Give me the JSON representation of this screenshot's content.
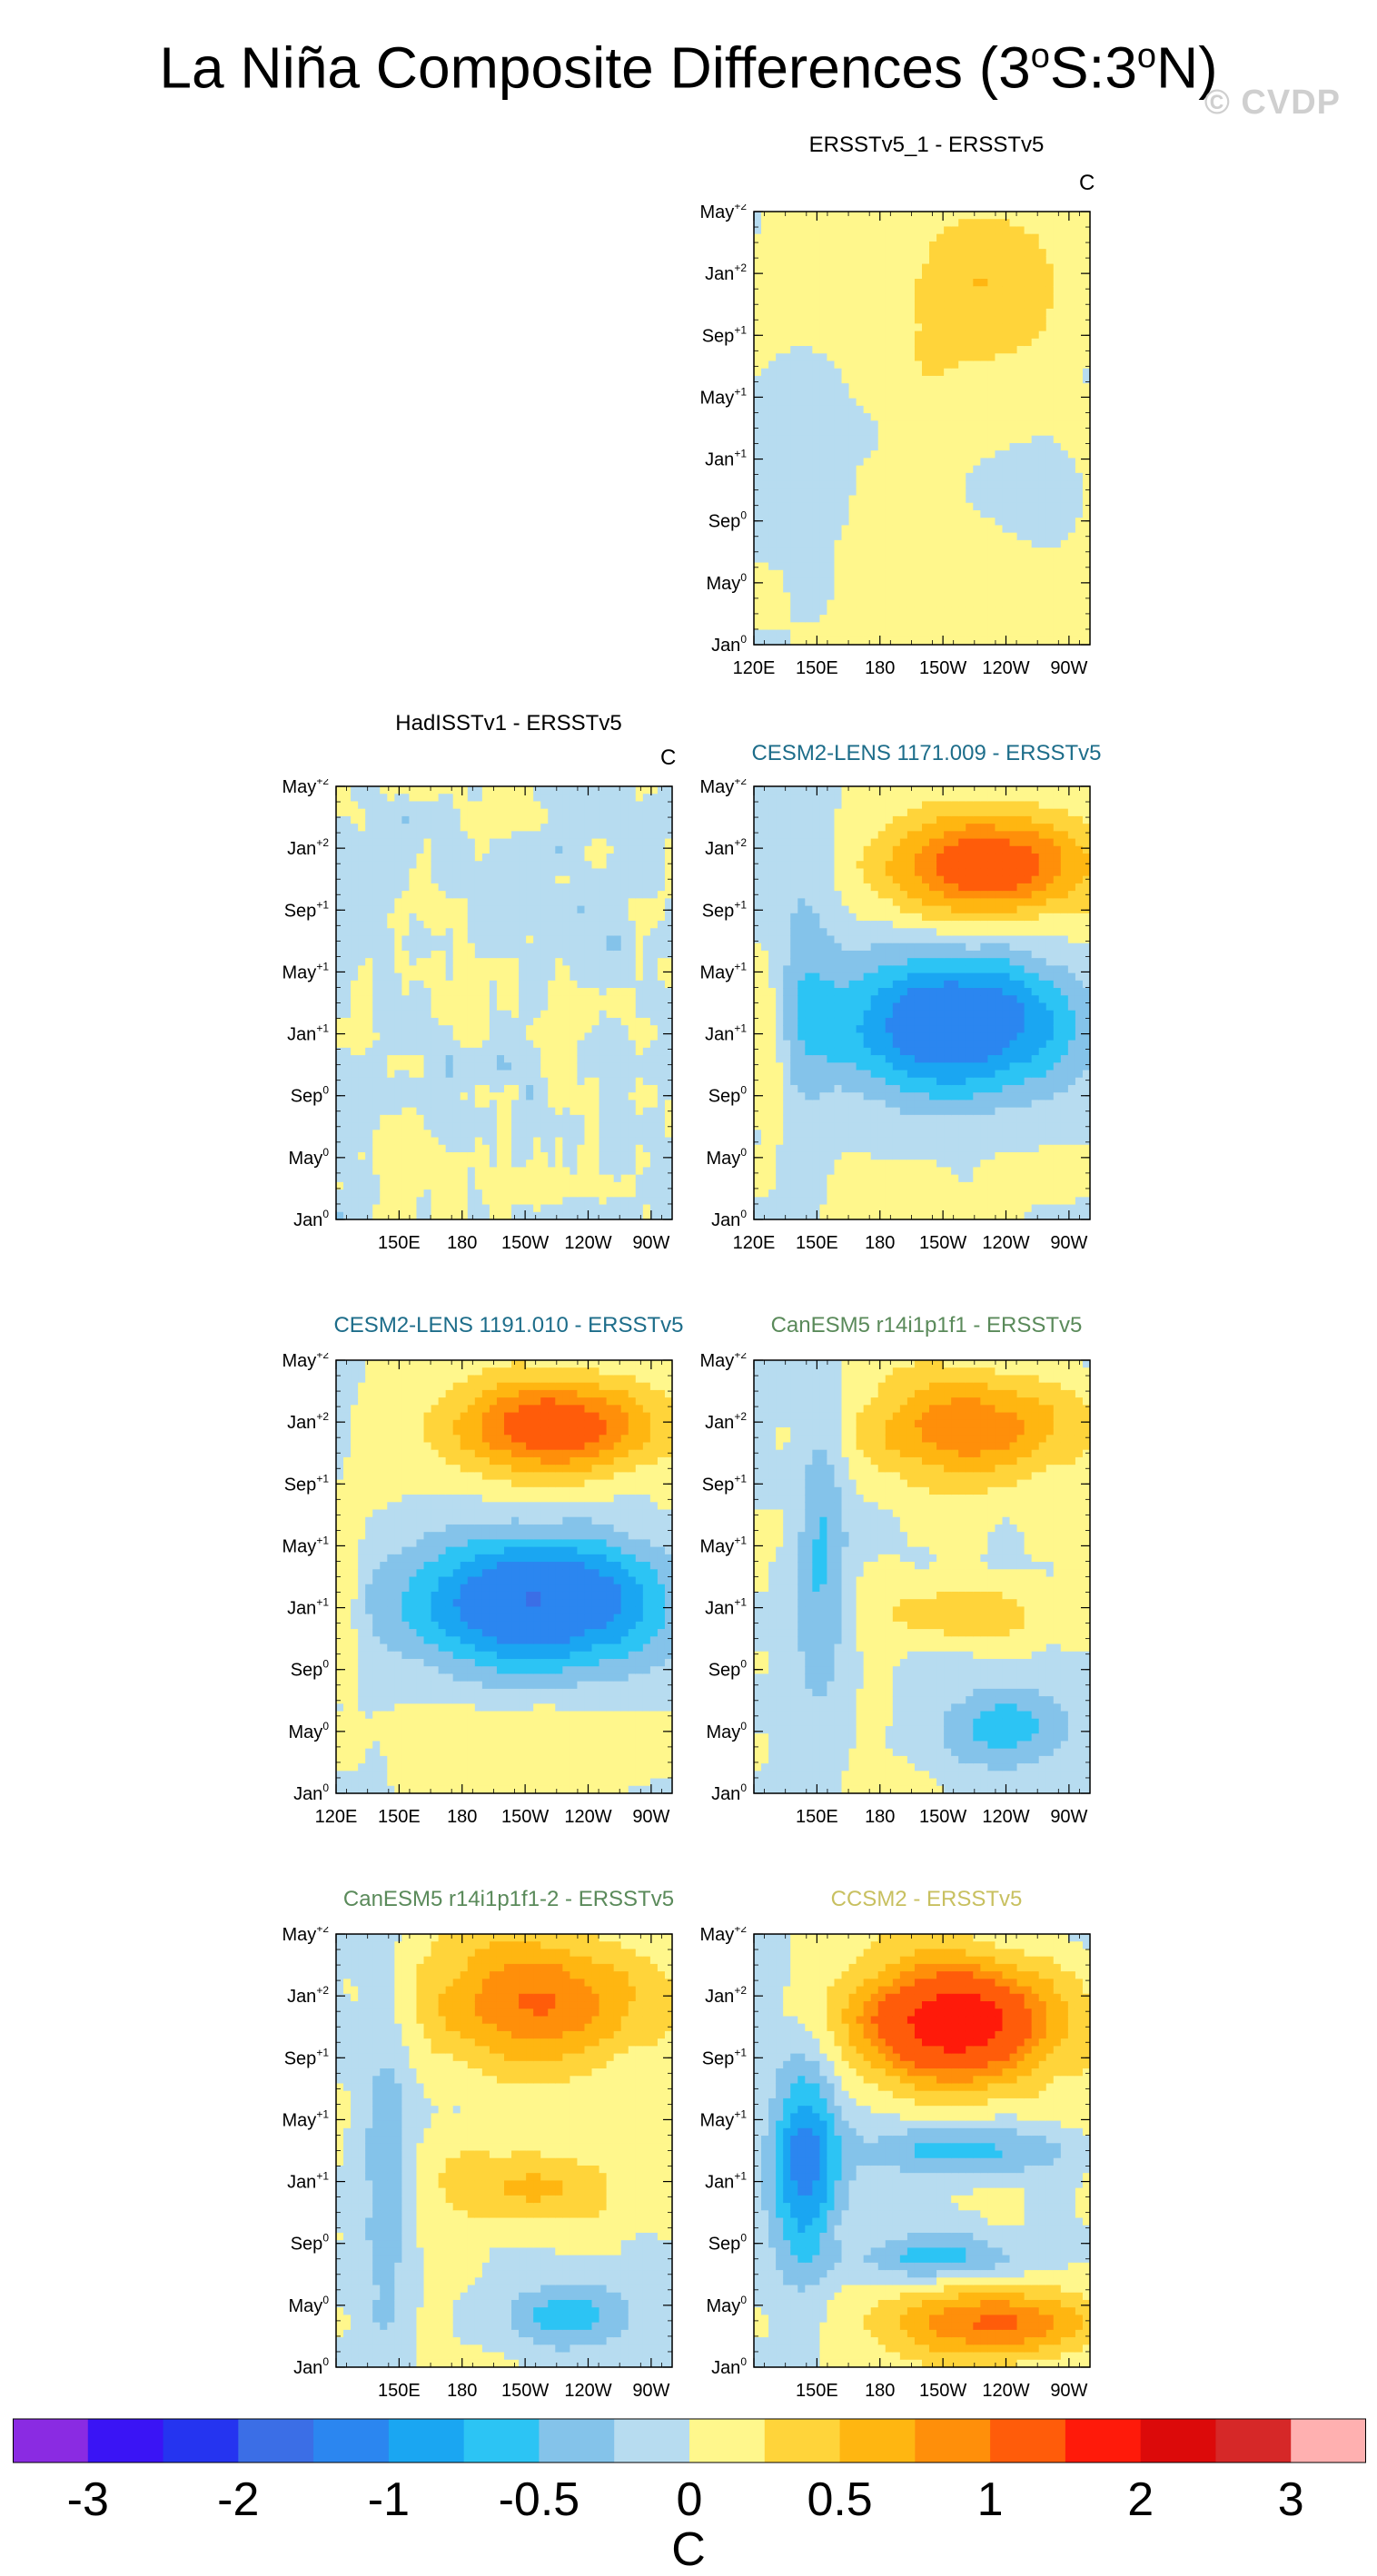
{
  "header": {
    "title_main": "La Niña Composite Differences (3",
    "title_deg1": "o",
    "title_mid": "S:3",
    "title_deg2": "o",
    "title_end": "N)",
    "watermark": "© CVDP"
  },
  "units": "C",
  "axis": {
    "y_ticks": [
      {
        "base": "May",
        "sup": "+2"
      },
      {
        "base": "Jan",
        "sup": "+2"
      },
      {
        "base": "Sep",
        "sup": "+1"
      },
      {
        "base": "May",
        "sup": "+1"
      },
      {
        "base": "Jan",
        "sup": "+1"
      },
      {
        "base": "Sep",
        "sup": "0"
      },
      {
        "base": "May",
        "sup": "0"
      },
      {
        "base": "Jan",
        "sup": "0"
      }
    ],
    "x_ticks_full": [
      "120E",
      "150E",
      "180",
      "150W",
      "120W",
      "90W"
    ],
    "x_ticks_short": [
      "150E",
      "180",
      "150W",
      "120W",
      "90W"
    ]
  },
  "chart_data": [
    {
      "type": "heatmap",
      "title": "ERSSTv5_1 - ERSSTv5",
      "title_color": "#000000",
      "pattern": "weak",
      "units_label": "C"
    },
    {
      "type": "heatmap",
      "title": "HadISSTv1 - ERSSTv5",
      "title_color": "#000000",
      "pattern": "noise",
      "units_label": "C"
    },
    {
      "type": "heatmap",
      "title": "CESM2-LENS 1171.009 - ERSSTv5",
      "title_color": "#1d6d8a",
      "pattern": "strong",
      "units_label": ""
    },
    {
      "type": "heatmap",
      "title": "CESM2-LENS 1191.010 - ERSSTv5",
      "title_color": "#1d6d8a",
      "pattern": "strong2",
      "units_label": ""
    },
    {
      "type": "heatmap",
      "title": "CanESM5 r14i1p1f1 - ERSSTv5",
      "title_color": "#5a8a5a",
      "pattern": "can1",
      "units_label": ""
    },
    {
      "type": "heatmap",
      "title": "CanESM5 r14i1p1f1-2 - ERSSTv5",
      "title_color": "#5a8a5a",
      "pattern": "can2",
      "units_label": ""
    },
    {
      "type": "heatmap",
      "title": "CCSM2 - ERSSTv5",
      "title_color": "#c8c060",
      "pattern": "ccsm",
      "units_label": ""
    }
  ],
  "colorbar": {
    "colors": [
      "#8a2be2",
      "#3a14f5",
      "#2534f0",
      "#3b6ee6",
      "#2b86f0",
      "#1aa6f2",
      "#2cc4f4",
      "#84c3ea",
      "#b7dcf0",
      "#fff78c",
      "#ffd43a",
      "#ffb611",
      "#ff8f0a",
      "#ff5c0a",
      "#ff1a0a",
      "#dc0a0a",
      "#d62828",
      "#ffb0b0"
    ],
    "tick_labels": [
      "-3",
      "-2",
      "-1",
      "-0.5",
      "0",
      "0.5",
      "1",
      "2",
      "3"
    ],
    "label": "C"
  }
}
